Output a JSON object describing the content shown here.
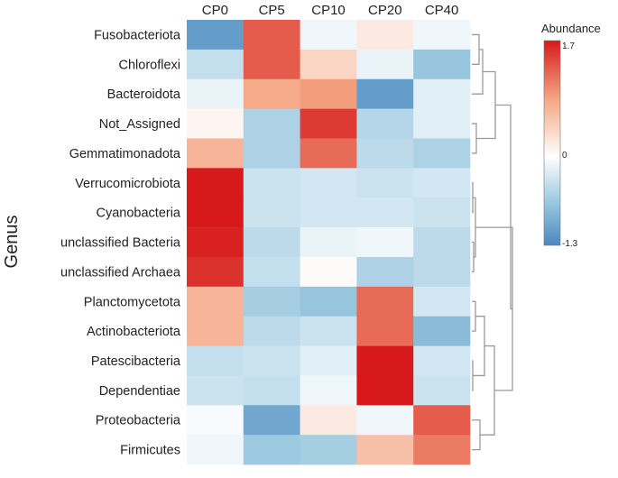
{
  "chart_data": {
    "type": "heatmap",
    "title": "",
    "xlabel": "",
    "ylabel": "Genus",
    "columns": [
      "CP0",
      "CP5",
      "CP10",
      "CP20",
      "CP40"
    ],
    "rows": [
      "Fusobacteriota",
      "Chloroflexi",
      "Bacteroidota",
      "Not_Assigned",
      "Gemmatimonadota",
      "Verrucomicrobiota",
      "Cyanobacteria",
      "unclassified Bacteria",
      "unclassified Archaea",
      "Planctomycetota",
      "Actinobacteriota",
      "Patescibacteria",
      "Dependentiae",
      "Proteobacteria",
      "Firmicutes"
    ],
    "values": [
      [
        -1.1,
        1.3,
        -0.1,
        0.2,
        -0.1
      ],
      [
        -0.4,
        1.3,
        0.4,
        -0.15,
        -0.7
      ],
      [
        -0.15,
        0.8,
        0.9,
        -1.1,
        -0.2
      ],
      [
        0.1,
        -0.55,
        1.5,
        -0.5,
        -0.2
      ],
      [
        0.7,
        -0.55,
        1.2,
        -0.45,
        -0.55
      ],
      [
        1.7,
        -0.35,
        -0.3,
        -0.35,
        -0.3
      ],
      [
        1.7,
        -0.35,
        -0.3,
        -0.3,
        -0.35
      ],
      [
        1.65,
        -0.45,
        -0.15,
        -0.1,
        -0.45
      ],
      [
        1.55,
        -0.4,
        0.05,
        -0.55,
        -0.45
      ],
      [
        0.7,
        -0.6,
        -0.7,
        1.2,
        -0.3
      ],
      [
        0.7,
        -0.45,
        -0.35,
        1.2,
        -0.8
      ],
      [
        -0.4,
        -0.35,
        -0.2,
        1.7,
        -0.3
      ],
      [
        -0.35,
        -0.4,
        -0.1,
        1.7,
        -0.35
      ],
      [
        -0.05,
        -1.0,
        0.2,
        -0.1,
        1.3
      ],
      [
        -0.1,
        -0.65,
        -0.6,
        0.6,
        1.1
      ]
    ],
    "legend": {
      "title": "Abundance",
      "position": "right",
      "range": [
        -1.3,
        1.7
      ],
      "tick_labels": [
        "1.7",
        "0",
        "-1.3"
      ],
      "colors": {
        "low": "#4a88c0",
        "mid": "#ffffff",
        "high": "#d7191c"
      }
    },
    "row_dendrogram": true
  }
}
